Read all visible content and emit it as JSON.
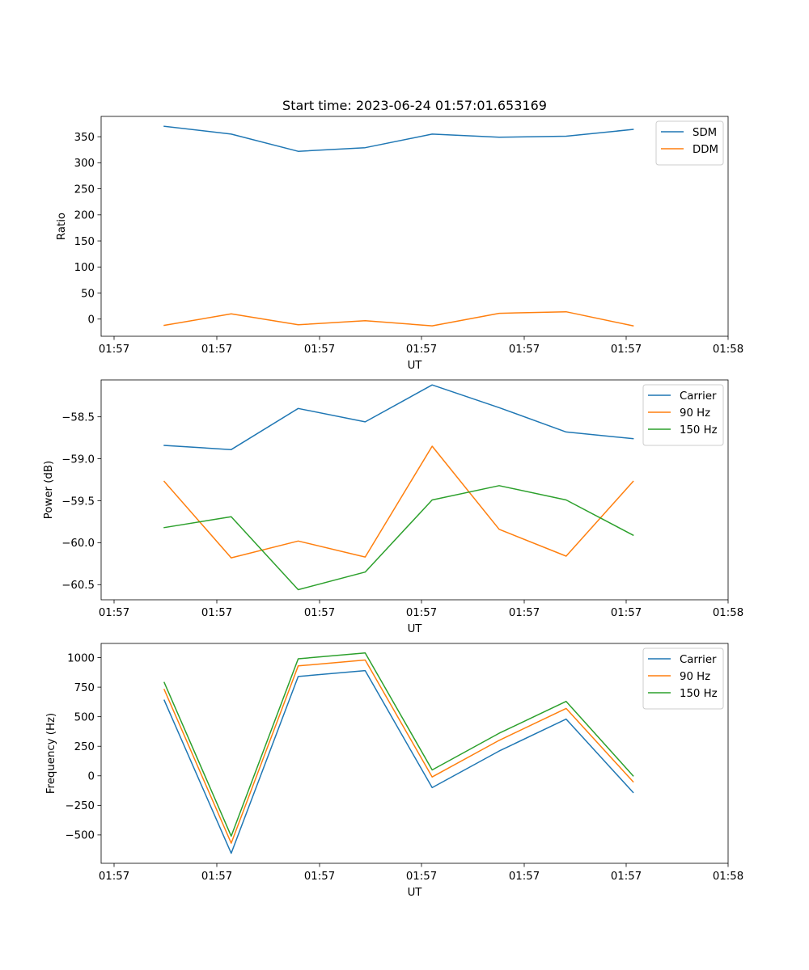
{
  "figure": {
    "title": "Start time: 2023-06-24 01:57:01.653169"
  },
  "chart_data": [
    {
      "type": "line",
      "title": "Start time: 2023-06-24 01:57:01.653169",
      "xlabel": "UT",
      "ylabel": "Ratio",
      "x_ticks": [
        "01:57",
        "01:57",
        "01:57",
        "01:57",
        "01:57",
        "01:57",
        "01:58"
      ],
      "y_ticks": [
        0,
        50,
        100,
        150,
        200,
        250,
        300,
        350
      ],
      "y_tick_labels": [
        "0",
        "50",
        "100",
        "150",
        "200",
        "250",
        "300",
        "350"
      ],
      "ylim": [
        -33,
        389
      ],
      "legend": "upper right",
      "grid": false,
      "series": [
        {
          "name": "SDM",
          "color": "#1f77b4",
          "values": [
            370,
            355,
            322,
            329,
            355,
            349,
            351,
            364
          ]
        },
        {
          "name": "DDM",
          "color": "#ff7f0e",
          "values": [
            -12,
            10,
            -11,
            -3,
            -13,
            11,
            14,
            -13
          ]
        }
      ]
    },
    {
      "type": "line",
      "xlabel": "UT",
      "ylabel": "Power (dB)",
      "x_ticks": [
        "01:57",
        "01:57",
        "01:57",
        "01:57",
        "01:57",
        "01:57",
        "01:58"
      ],
      "y_ticks": [
        -58.5,
        -59.0,
        -59.5,
        -60.0,
        -60.5
      ],
      "y_tick_labels": [
        "−58.5",
        "−59.0",
        "−59.5",
        "−60.0",
        "−60.5"
      ],
      "ylim": [
        -60.68,
        -58.06
      ],
      "legend": "upper right",
      "grid": false,
      "series": [
        {
          "name": "Carrier",
          "color": "#1f77b4",
          "values": [
            -58.84,
            -58.89,
            -58.4,
            -58.56,
            -58.12,
            -58.39,
            -58.68,
            -58.76
          ]
        },
        {
          "name": "90 Hz",
          "color": "#ff7f0e",
          "values": [
            -59.27,
            -60.18,
            -59.98,
            -60.17,
            -58.85,
            -59.84,
            -60.16,
            -59.27
          ]
        },
        {
          "name": "150 Hz",
          "color": "#2ca02c",
          "values": [
            -59.82,
            -59.69,
            -60.56,
            -60.35,
            -59.49,
            -59.32,
            -59.49,
            -59.91
          ]
        }
      ]
    },
    {
      "type": "line",
      "xlabel": "UT",
      "ylabel": "Frequency (Hz)",
      "x_ticks": [
        "01:57",
        "01:57",
        "01:57",
        "01:57",
        "01:57",
        "01:57",
        "01:58"
      ],
      "y_ticks": [
        1000,
        750,
        500,
        250,
        0,
        -250,
        -500
      ],
      "y_tick_labels": [
        "1000",
        "750",
        "500",
        "250",
        "0",
        "−250",
        "−500"
      ],
      "ylim": [
        -740,
        1120
      ],
      "legend": "upper right",
      "grid": false,
      "series": [
        {
          "name": "Carrier",
          "color": "#1f77b4",
          "values": [
            640,
            -655,
            840,
            890,
            -100,
            210,
            480,
            -140
          ]
        },
        {
          "name": "90 Hz",
          "color": "#ff7f0e",
          "values": [
            730,
            -570,
            930,
            980,
            -10,
            300,
            570,
            -50
          ]
        },
        {
          "name": "150 Hz",
          "color": "#2ca02c",
          "values": [
            790,
            -510,
            990,
            1040,
            50,
            360,
            630,
            0
          ]
        }
      ]
    }
  ]
}
